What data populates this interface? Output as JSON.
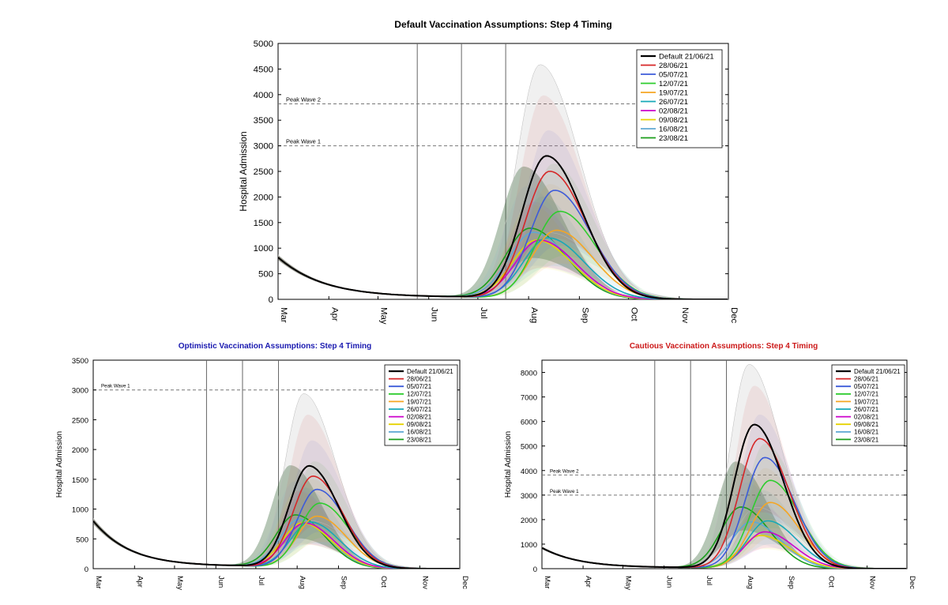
{
  "chart_data": [
    {
      "id": "default",
      "type": "line",
      "title": "Default Vaccination Assumptions: Step 4 Timing",
      "title_color": "#000000",
      "ylabel": "Hospital Admission",
      "xlabel": "",
      "ylim": [
        0,
        5000
      ],
      "yticks": [
        "0",
        "500",
        "1000",
        "1500",
        "2000",
        "2500",
        "3000",
        "3500",
        "4000",
        "4500",
        "5000"
      ],
      "months": [
        "Mar",
        "Apr",
        "May",
        "Jun",
        "Jul",
        "Aug",
        "Sep",
        "Oct",
        "Nov",
        "Dec"
      ],
      "step_lines_days": [
        85,
        112,
        139
      ],
      "reference_lines": [
        {
          "label": "Peak Wave 1",
          "value": 3000
        },
        {
          "label": "Peak Wave 2",
          "value": 3820
        }
      ],
      "start_value": 820,
      "series": [
        {
          "name": "Default 21/06/21",
          "color": "#000000",
          "peak": 2800,
          "peak_day": 164,
          "band_high": 4580,
          "band_low": 1300
        },
        {
          "name": "28/06/21",
          "color": "#d62728",
          "peak": 2500,
          "peak_day": 166,
          "band_high": 3980,
          "band_low": 1200
        },
        {
          "name": "05/07/21",
          "color": "#3d5bd9",
          "peak": 2130,
          "peak_day": 169,
          "band_high": 3300,
          "band_low": 1050
        },
        {
          "name": "12/07/21",
          "color": "#2ecc2e",
          "peak": 1720,
          "peak_day": 172,
          "band_high": 2650,
          "band_low": 850
        },
        {
          "name": "19/07/21",
          "color": "#f5a623",
          "peak": 1350,
          "peak_day": 170,
          "band_high": 2250,
          "band_low": 700
        },
        {
          "name": "26/07/21",
          "color": "#17a8b8",
          "peak": 1200,
          "peak_day": 165,
          "band_high": 2000,
          "band_low": 650
        },
        {
          "name": "02/08/21",
          "color": "#cc00cc",
          "peak": 1150,
          "peak_day": 160,
          "band_high": 1900,
          "band_low": 620
        },
        {
          "name": "09/08/21",
          "color": "#e6d200",
          "peak": 1150,
          "peak_day": 158,
          "band_high": 1850,
          "band_low": 600
        },
        {
          "name": "16/08/21",
          "color": "#5fa8d3",
          "peak": 1300,
          "peak_day": 156,
          "band_high": 2200,
          "band_low": 650
        },
        {
          "name": "23/08/21",
          "color": "#1a9e1a",
          "peak": 1380,
          "peak_day": 154,
          "band_high": 2580,
          "band_low": 800
        }
      ]
    },
    {
      "id": "optimistic",
      "type": "line",
      "title": "Optimistic Vaccination Assumptions: Step 4 Timing",
      "title_color": "#1a1ab0",
      "ylabel": "Hospital Admission",
      "xlabel": "",
      "ylim": [
        0,
        3500
      ],
      "yticks": [
        "0",
        "500",
        "1000",
        "1500",
        "2000",
        "2500",
        "3000",
        "3500"
      ],
      "months": [
        "Mar",
        "Apr",
        "May",
        "Jun",
        "Jul",
        "Aug",
        "Sep",
        "Oct",
        "Nov",
        "Dec"
      ],
      "step_lines_days": [
        85,
        112,
        139
      ],
      "reference_lines": [
        {
          "label": "Peak Wave 1",
          "value": 3000
        }
      ],
      "start_value": 800,
      "series": [
        {
          "name": "Default 21/06/21",
          "color": "#000000",
          "peak": 1720,
          "peak_day": 162,
          "band_high": 2930,
          "band_low": 800
        },
        {
          "name": "28/06/21",
          "color": "#d62728",
          "peak": 1550,
          "peak_day": 165,
          "band_high": 2580,
          "band_low": 720
        },
        {
          "name": "05/07/21",
          "color": "#3d5bd9",
          "peak": 1330,
          "peak_day": 168,
          "band_high": 2150,
          "band_low": 620
        },
        {
          "name": "12/07/21",
          "color": "#2ecc2e",
          "peak": 1100,
          "peak_day": 170,
          "band_high": 1800,
          "band_low": 520
        },
        {
          "name": "19/07/21",
          "color": "#f5a623",
          "peak": 880,
          "peak_day": 168,
          "band_high": 1500,
          "band_low": 450
        },
        {
          "name": "26/07/21",
          "color": "#17a8b8",
          "peak": 780,
          "peak_day": 163,
          "band_high": 1350,
          "band_low": 420
        },
        {
          "name": "02/08/21",
          "color": "#cc00cc",
          "peak": 760,
          "peak_day": 159,
          "band_high": 1300,
          "band_low": 400
        },
        {
          "name": "09/08/21",
          "color": "#e6d200",
          "peak": 760,
          "peak_day": 157,
          "band_high": 1300,
          "band_low": 400
        },
        {
          "name": "16/08/21",
          "color": "#5fa8d3",
          "peak": 820,
          "peak_day": 155,
          "band_high": 1450,
          "band_low": 420
        },
        {
          "name": "23/08/21",
          "color": "#1a9e1a",
          "peak": 890,
          "peak_day": 152,
          "band_high": 1720,
          "band_low": 500
        }
      ]
    },
    {
      "id": "cautious",
      "type": "line",
      "title": "Cautious Vaccination Assumptions: Step 4 Timing",
      "title_color": "#cc1a1a",
      "ylabel": "Hospital Admission",
      "xlabel": "",
      "ylim": [
        0,
        8500
      ],
      "yticks": [
        "0",
        "1000",
        "2000",
        "3000",
        "4000",
        "5000",
        "6000",
        "7000",
        "8000"
      ],
      "months": [
        "Mar",
        "Apr",
        "May",
        "Jun",
        "Jul",
        "Aug",
        "Sep",
        "Oct",
        "Nov",
        "Dec"
      ],
      "step_lines_days": [
        85,
        112,
        139
      ],
      "reference_lines": [
        {
          "label": "Peak Wave 1",
          "value": 3000
        },
        {
          "label": "Peak Wave 2",
          "value": 3820
        }
      ],
      "start_value": 850,
      "series": [
        {
          "name": "Default 21/06/21",
          "color": "#000000",
          "peak": 5870,
          "peak_day": 160,
          "band_high": 8320,
          "band_low": 2500
        },
        {
          "name": "28/06/21",
          "color": "#d62728",
          "peak": 5300,
          "peak_day": 164,
          "band_high": 7450,
          "band_low": 2300
        },
        {
          "name": "05/07/21",
          "color": "#3d5bd9",
          "peak": 4530,
          "peak_day": 168,
          "band_high": 6280,
          "band_low": 2000
        },
        {
          "name": "12/07/21",
          "color": "#2ecc2e",
          "peak": 3600,
          "peak_day": 172,
          "band_high": 5100,
          "band_low": 1650
        },
        {
          "name": "19/07/21",
          "color": "#f5a623",
          "peak": 2700,
          "peak_day": 172,
          "band_high": 4100,
          "band_low": 1300
        },
        {
          "name": "26/07/21",
          "color": "#17a8b8",
          "peak": 1950,
          "peak_day": 170,
          "band_high": 3200,
          "band_low": 1000
        },
        {
          "name": "02/08/21",
          "color": "#cc00cc",
          "peak": 1500,
          "peak_day": 168,
          "band_high": 2600,
          "band_low": 850
        },
        {
          "name": "09/08/21",
          "color": "#e6d200",
          "peak": 1350,
          "peak_day": 165,
          "band_high": 2400,
          "band_low": 800
        },
        {
          "name": "16/08/21",
          "color": "#5fa8d3",
          "peak": 1900,
          "peak_day": 158,
          "band_high": 3500,
          "band_low": 1000
        },
        {
          "name": "23/08/21",
          "color": "#1a9e1a",
          "peak": 2500,
          "peak_day": 150,
          "band_high": 4350,
          "band_low": 1550
        }
      ]
    }
  ]
}
